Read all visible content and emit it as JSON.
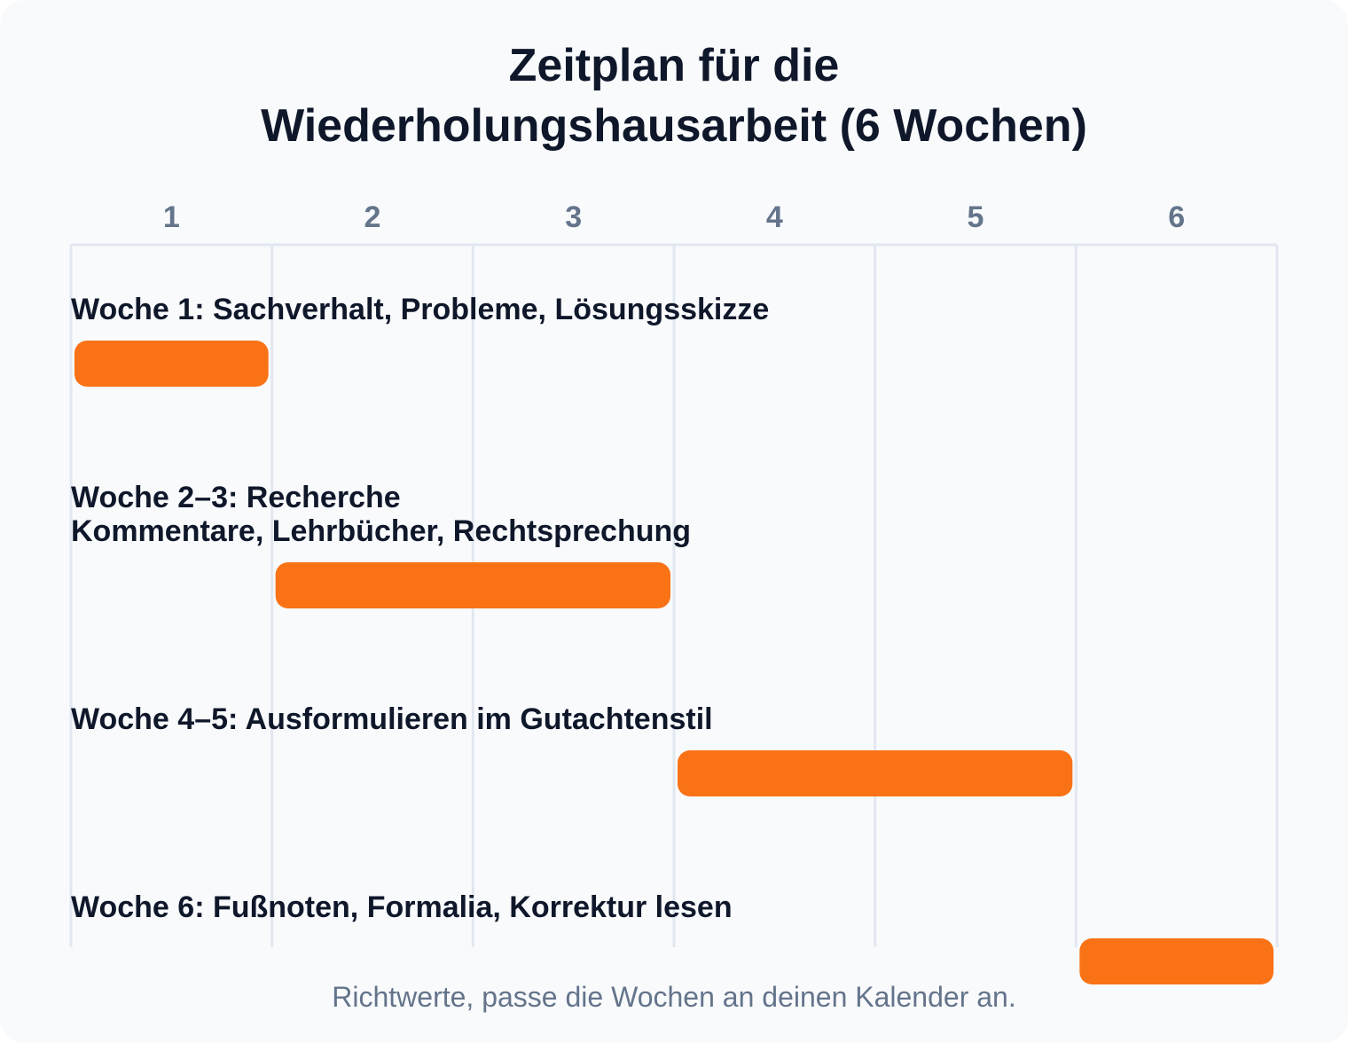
{
  "title_lines": [
    "Zeitplan für die",
    "Wiederholungshausarbeit (6 Wochen)"
  ],
  "footnote": "Richtwerte, passe die Wochen an deinen Kalender an.",
  "chart_data": {
    "type": "gantt",
    "title": "Zeitplan für die Wiederholungshausarbeit (6 Wochen)",
    "x_ticks": [
      "1",
      "2",
      "3",
      "4",
      "5",
      "6"
    ],
    "x_range": [
      1,
      6
    ],
    "grid": true,
    "bar_color": "#f97316",
    "grid_color": "#e2e8f0",
    "tasks": [
      {
        "label_lines": [
          "Woche 1: Sachverhalt, Probleme, Lösungsskizze"
        ],
        "start": 1,
        "end": 1
      },
      {
        "label_lines": [
          "Woche 2–3: Recherche",
          "Kommentare, Lehrbücher, Rechtsprechung"
        ],
        "start": 2,
        "end": 3
      },
      {
        "label_lines": [
          "Woche 4–5: Ausformulieren im Gutachtenstil"
        ],
        "start": 4,
        "end": 5
      },
      {
        "label_lines": [
          "Woche 6: Fußnoten, Formalia, Korrektur lesen"
        ],
        "start": 6,
        "end": 6
      }
    ]
  }
}
